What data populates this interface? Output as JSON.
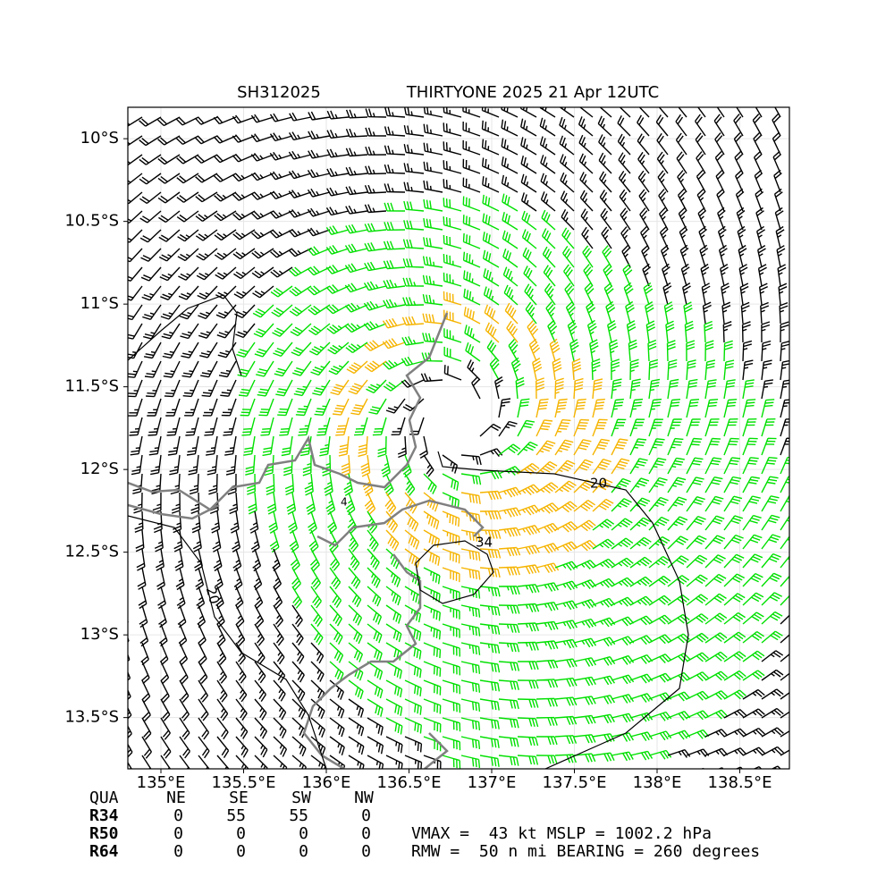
{
  "chart_data": {
    "type": "wind-barb-map",
    "title_left": "SH312025",
    "title_right": "THIRTYONE 2025 21 Apr 12UTC",
    "xlim": [
      134.8,
      138.8
    ],
    "ylim": [
      -13.81,
      -9.81
    ],
    "xticks": [
      {
        "value": 135,
        "label": "135°E"
      },
      {
        "value": 135.5,
        "label": "135.5°E"
      },
      {
        "value": 136,
        "label": "136°E"
      },
      {
        "value": 136.5,
        "label": "136.5°E"
      },
      {
        "value": 137,
        "label": "137°E"
      },
      {
        "value": 137.5,
        "label": "137.5°E"
      },
      {
        "value": 138,
        "label": "138°E"
      },
      {
        "value": 138.5,
        "label": "138.5°E"
      }
    ],
    "yticks": [
      {
        "value": -10,
        "label": "10°S"
      },
      {
        "value": -10.5,
        "label": "10.5°S"
      },
      {
        "value": -11,
        "label": "11°S"
      },
      {
        "value": -11.5,
        "label": "11.5°S"
      },
      {
        "value": -12,
        "label": "12°S"
      },
      {
        "value": -12.5,
        "label": "12.5°S"
      },
      {
        "value": -13,
        "label": "13°S"
      },
      {
        "value": -13.5,
        "label": "13.5°S"
      }
    ],
    "grid": true,
    "contour_labels": [
      20,
      34,
      20,
      4
    ],
    "table": {
      "header": [
        "QUA",
        "NE",
        "SE",
        "SW",
        "NW"
      ],
      "rows": [
        [
          "R34",
          0,
          55,
          55,
          0
        ],
        [
          "R50",
          0,
          0,
          0,
          0
        ],
        [
          "R64",
          0,
          0,
          0,
          0
        ]
      ]
    },
    "info_lines": [
      "VMAX =  43 kt MSLP = 1002.2 hPa",
      "RMW =  50 n mi BEARING = 260 degrees"
    ]
  }
}
